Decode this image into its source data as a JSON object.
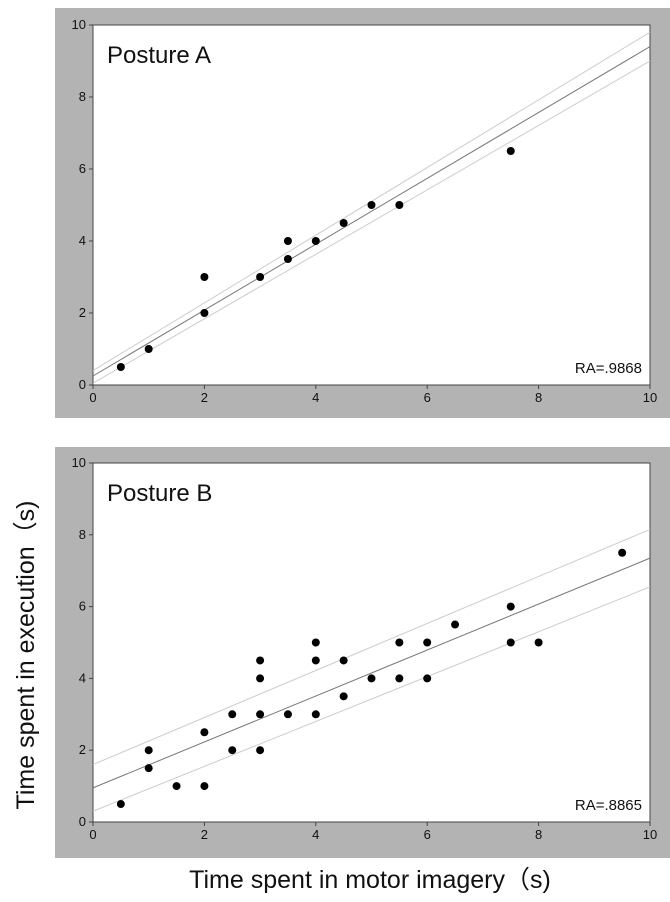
{
  "chart_data": [
    {
      "type": "scatter",
      "title": "Posture A",
      "annotation": "RA=.9868",
      "color": "#000000",
      "x": [
        0.5,
        1,
        2,
        2,
        3,
        3.5,
        3.5,
        4,
        4.5,
        5,
        5.5,
        7.5
      ],
      "values": [
        0.5,
        1,
        2,
        3,
        3,
        3.5,
        4,
        4,
        4.5,
        5,
        5,
        6.5
      ],
      "fit": {
        "x": [
          0,
          10
        ],
        "values": [
          0.25,
          9.4
        ],
        "color": "#777777"
      },
      "bands": [
        {
          "x": [
            0,
            10
          ],
          "values": [
            0.4,
            9.8
          ],
          "color": "#cccccc"
        },
        {
          "x": [
            0,
            10
          ],
          "values": [
            0.05,
            9.0
          ],
          "color": "#cccccc"
        }
      ],
      "xlim": [
        0,
        10
      ],
      "ylim": [
        0,
        10
      ],
      "xticks": [
        0,
        2,
        4,
        6,
        8,
        10
      ],
      "yticks": [
        0,
        2,
        4,
        6,
        8,
        10
      ]
    },
    {
      "type": "scatter",
      "title": "Posture B",
      "annotation": "RA=.8865",
      "color": "#000000",
      "xlabel": "Time spent in motor imagery（s)",
      "ylabel": "Time spent in execution（s)",
      "x": [
        0.5,
        1,
        1,
        1.5,
        2,
        2,
        2.5,
        2.5,
        3,
        3,
        3,
        3,
        3.5,
        4,
        4,
        4,
        4.5,
        4.5,
        5,
        5.5,
        5.5,
        6,
        6,
        6.5,
        7.5,
        7.5,
        8,
        9.5
      ],
      "values": [
        0.5,
        2,
        1.5,
        1,
        1,
        2.5,
        3,
        2,
        4.5,
        4,
        3,
        2,
        3,
        5,
        4.5,
        3,
        4.5,
        3.5,
        4,
        5,
        4,
        5,
        4,
        5.5,
        6,
        5,
        5,
        7.5
      ],
      "fit": {
        "x": [
          0,
          10
        ],
        "values": [
          0.95,
          7.35
        ],
        "color": "#777777"
      },
      "bands": [
        {
          "x": [
            0,
            10
          ],
          "values": [
            1.6,
            8.15
          ],
          "color": "#cccccc"
        },
        {
          "x": [
            0,
            10
          ],
          "values": [
            0.3,
            6.55
          ],
          "color": "#cccccc"
        }
      ],
      "xlim": [
        0,
        10
      ],
      "ylim": [
        0,
        10
      ],
      "xticks": [
        0,
        2,
        4,
        6,
        8,
        10
      ],
      "yticks": [
        0,
        2,
        4,
        6,
        8,
        10
      ]
    }
  ]
}
